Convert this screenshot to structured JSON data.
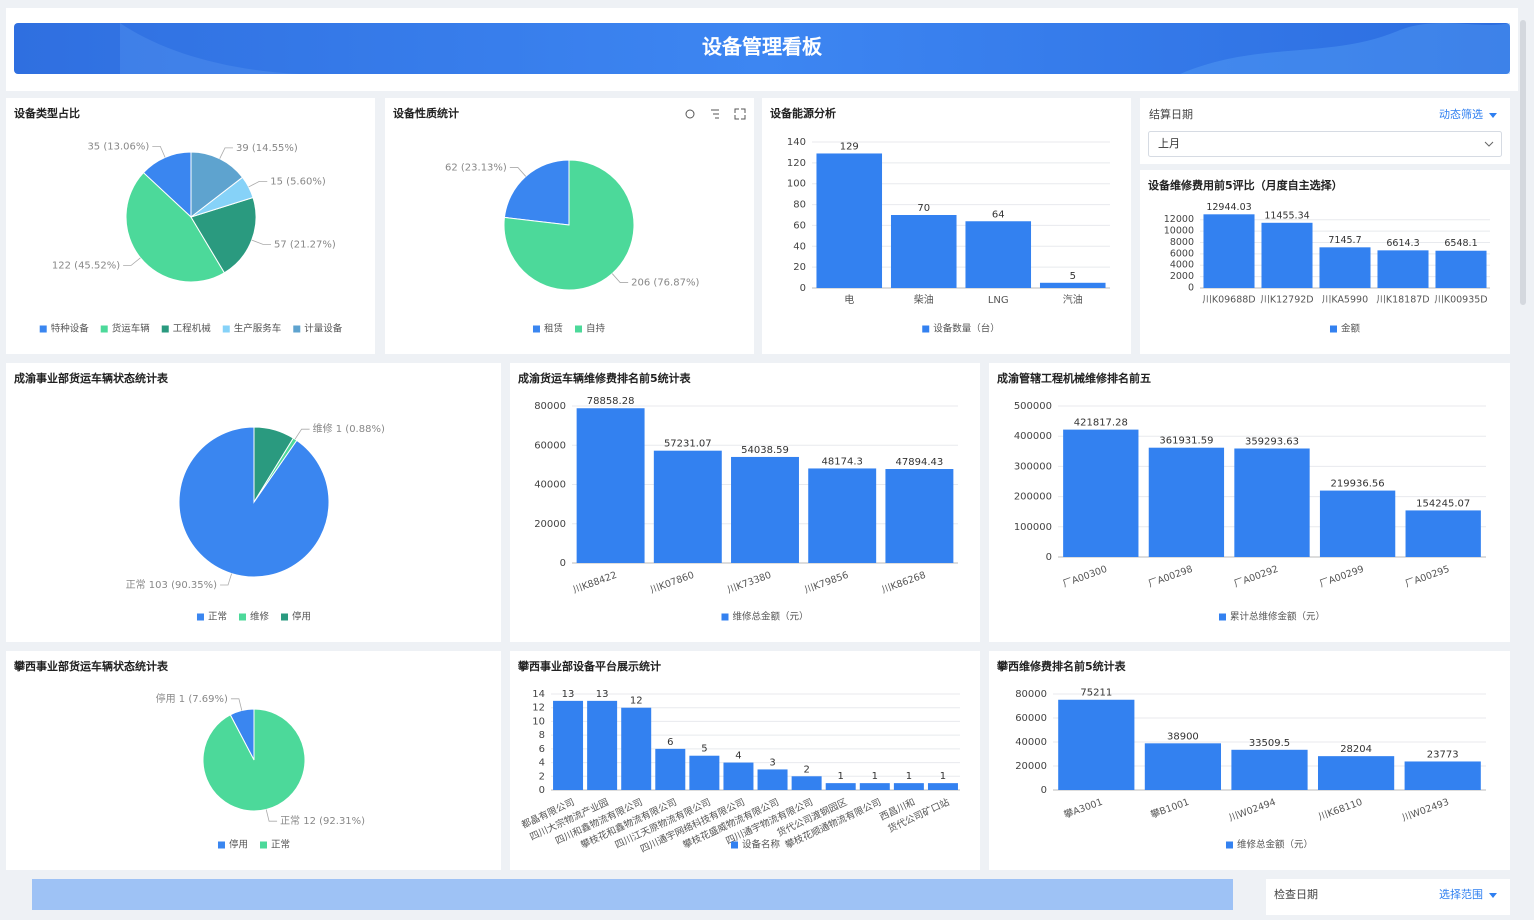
{
  "header": {
    "title": "设备管理看板"
  },
  "filters": [
    {
      "label": "结算日期",
      "action": "动态筛选",
      "value": "上月"
    },
    {
      "label": "检查日期",
      "action": "选择范围"
    }
  ],
  "chart_data": [
    {
      "type": "pie",
      "title": "设备类型占比",
      "categories": [
        "特种设备",
        "货运车辆",
        "工程机械",
        "生产服务车",
        "计量设备"
      ],
      "values": [
        35,
        122,
        57,
        15,
        39
      ],
      "value_labels": [
        "35 (13.06%)",
        "122 (45.52%)",
        "57 (21.27%)",
        "15 (5.60%)",
        "39 (14.55%)"
      ],
      "colors": [
        "#3a86f0",
        "#4cd99a",
        "#2a9a7f",
        "#86d2f8",
        "#5ea3cf"
      ]
    },
    {
      "type": "pie",
      "title": "设备性质统计",
      "categories": [
        "租赁",
        "自持"
      ],
      "values": [
        62,
        206
      ],
      "value_labels": [
        "62 (23.13%)",
        "206 (76.87%)"
      ],
      "colors": [
        "#3a86f0",
        "#4cd99a"
      ]
    },
    {
      "type": "bar",
      "title": "设备能源分析",
      "categories": [
        "电",
        "柴油",
        "LNG",
        "汽油"
      ],
      "series": [
        {
          "name": "设备数量（台）",
          "color": "#3381f0",
          "values": [
            129,
            70,
            64,
            5
          ]
        }
      ],
      "ylim": [
        0,
        140
      ],
      "yticks": [
        0,
        20,
        40,
        60,
        80,
        100,
        120,
        140
      ],
      "grid": true
    },
    {
      "type": "bar",
      "title": "设备维修费用前5评比（月度自主选择）",
      "categories": [
        "川K09688D",
        "川K12792D",
        "川KA5990",
        "川K18187D",
        "川K00935D"
      ],
      "series": [
        {
          "name": "金额",
          "color": "#3381f0",
          "values": [
            12944.03,
            11455.34,
            7145.7,
            6614.3,
            6548.1
          ]
        }
      ],
      "ylim": [
        0,
        13000
      ],
      "yticks": [
        0,
        2000,
        4000,
        6000,
        8000,
        10000,
        12000
      ],
      "grid": true
    },
    {
      "type": "pie",
      "title": "成渝事业部货运车辆状态统计表",
      "categories": [
        "正常",
        "维修",
        "停用"
      ],
      "values": [
        103,
        1,
        10
      ],
      "value_labels": [
        "正常 103 (90.35%)",
        "维修 1 (0.88%)",
        null
      ],
      "colors": [
        "#3a86f0",
        "#4cd99a",
        "#2a9a7f"
      ]
    },
    {
      "type": "bar",
      "title": "成渝货运车辆维修费排名前5统计表",
      "categories": [
        "川K88422",
        "川K07860",
        "川K73380",
        "川K79856",
        "川K86268"
      ],
      "series": [
        {
          "name": "维修总金额（元）",
          "color": "#3381f0",
          "values": [
            78858.28,
            57231.07,
            54038.59,
            48174.3,
            47894.43
          ]
        }
      ],
      "ylim": [
        0,
        80000
      ],
      "yticks": [
        0,
        20000,
        40000,
        60000,
        80000
      ],
      "grid": true
    },
    {
      "type": "bar",
      "title": "成渝管辖工程机械维修排名前五",
      "categories": [
        "厂A00300",
        "厂A00298",
        "厂A00292",
        "厂A00299",
        "厂A00295"
      ],
      "series": [
        {
          "name": "累计总维修金额（元）",
          "color": "#3381f0",
          "values": [
            421817.28,
            361931.59,
            359293.63,
            219936.56,
            154245.07
          ]
        }
      ],
      "ylim": [
        0,
        500000
      ],
      "yticks": [
        0,
        100000,
        200000,
        300000,
        400000,
        500000
      ],
      "grid": true
    },
    {
      "type": "pie",
      "title": "攀西事业部货运车辆状态统计表",
      "categories": [
        "停用",
        "正常"
      ],
      "values": [
        1,
        12
      ],
      "value_labels": [
        "停用 1 (7.69%)",
        "正常 12 (92.31%)"
      ],
      "colors": [
        "#3a86f0",
        "#4cd99a"
      ]
    },
    {
      "type": "bar",
      "title": "攀西事业部设备平台展示统计",
      "categories": [
        "都晶有限公司",
        "四川大宗物流产业园",
        "四川和鑫物流有限公司",
        "攀枝花和鑫物流有限公司",
        "四川江天原物流有限公司",
        "四川通宇网络科技有限公司",
        "攀枝花盛威物流有限公司",
        "四川通宇物流有限公司",
        "货代公司渡钢园区",
        "攀枝花顺通物流有限公司",
        "西昌川和",
        "货代公司矿口站"
      ],
      "series": [
        {
          "name": "设备名称",
          "color": "#3381f0",
          "values": [
            13,
            13,
            12,
            6,
            5,
            4,
            3,
            2,
            1,
            1,
            1,
            1
          ]
        }
      ],
      "ylim": [
        0,
        14
      ],
      "yticks": [
        0,
        2,
        4,
        6,
        8,
        10,
        12,
        14
      ],
      "grid": true
    },
    {
      "type": "bar",
      "title": "攀西维修费排名前5统计表",
      "categories": [
        "攀A3001",
        "攀B1001",
        "川W02494",
        "川K68110",
        "川W02493"
      ],
      "series": [
        {
          "name": "维修总金额（元）",
          "color": "#3381f0",
          "values": [
            75211,
            38900,
            33509.5,
            28204,
            23773
          ]
        }
      ],
      "ylim": [
        0,
        80000
      ],
      "yticks": [
        0,
        20000,
        40000,
        60000,
        80000
      ],
      "grid": true
    }
  ]
}
